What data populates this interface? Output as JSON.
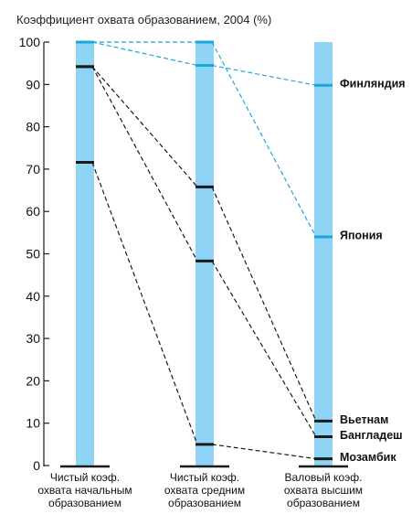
{
  "chart_data": {
    "type": "line",
    "title": "Коэффициент охвата образованием, 2004 (%)",
    "ylim": [
      0,
      100
    ],
    "yticks": [
      0,
      10,
      20,
      30,
      40,
      50,
      60,
      70,
      80,
      90,
      100
    ],
    "categories": [
      [
        "Чистый коэф.",
        "охвата начальным",
        "образованием"
      ],
      [
        "Чистый коэф.",
        "охвата средним",
        "образованием"
      ],
      [
        "Валовый коэф.",
        "охвата высшим",
        "образованием"
      ]
    ],
    "series": [
      {
        "name": "Финляндия",
        "values": [
          100,
          94.5,
          89.8
        ],
        "color": "#1aa7dc"
      },
      {
        "name": "Япония",
        "values": [
          100,
          100,
          54
        ],
        "color": "#1aa7dc"
      },
      {
        "name": "Вьетнам",
        "values": [
          94.2,
          65.8,
          10.5
        ],
        "color": "#1a1a1a"
      },
      {
        "name": "Бангладеш",
        "values": [
          94.2,
          48.3,
          6.8
        ],
        "color": "#1a1a1a"
      },
      {
        "name": "Мозамбик",
        "values": [
          71.6,
          5,
          1.6
        ],
        "color": "#1a1a1a"
      }
    ],
    "colors": {
      "bar": "#8fd4f4",
      "axis": "#1a1a1a"
    }
  }
}
